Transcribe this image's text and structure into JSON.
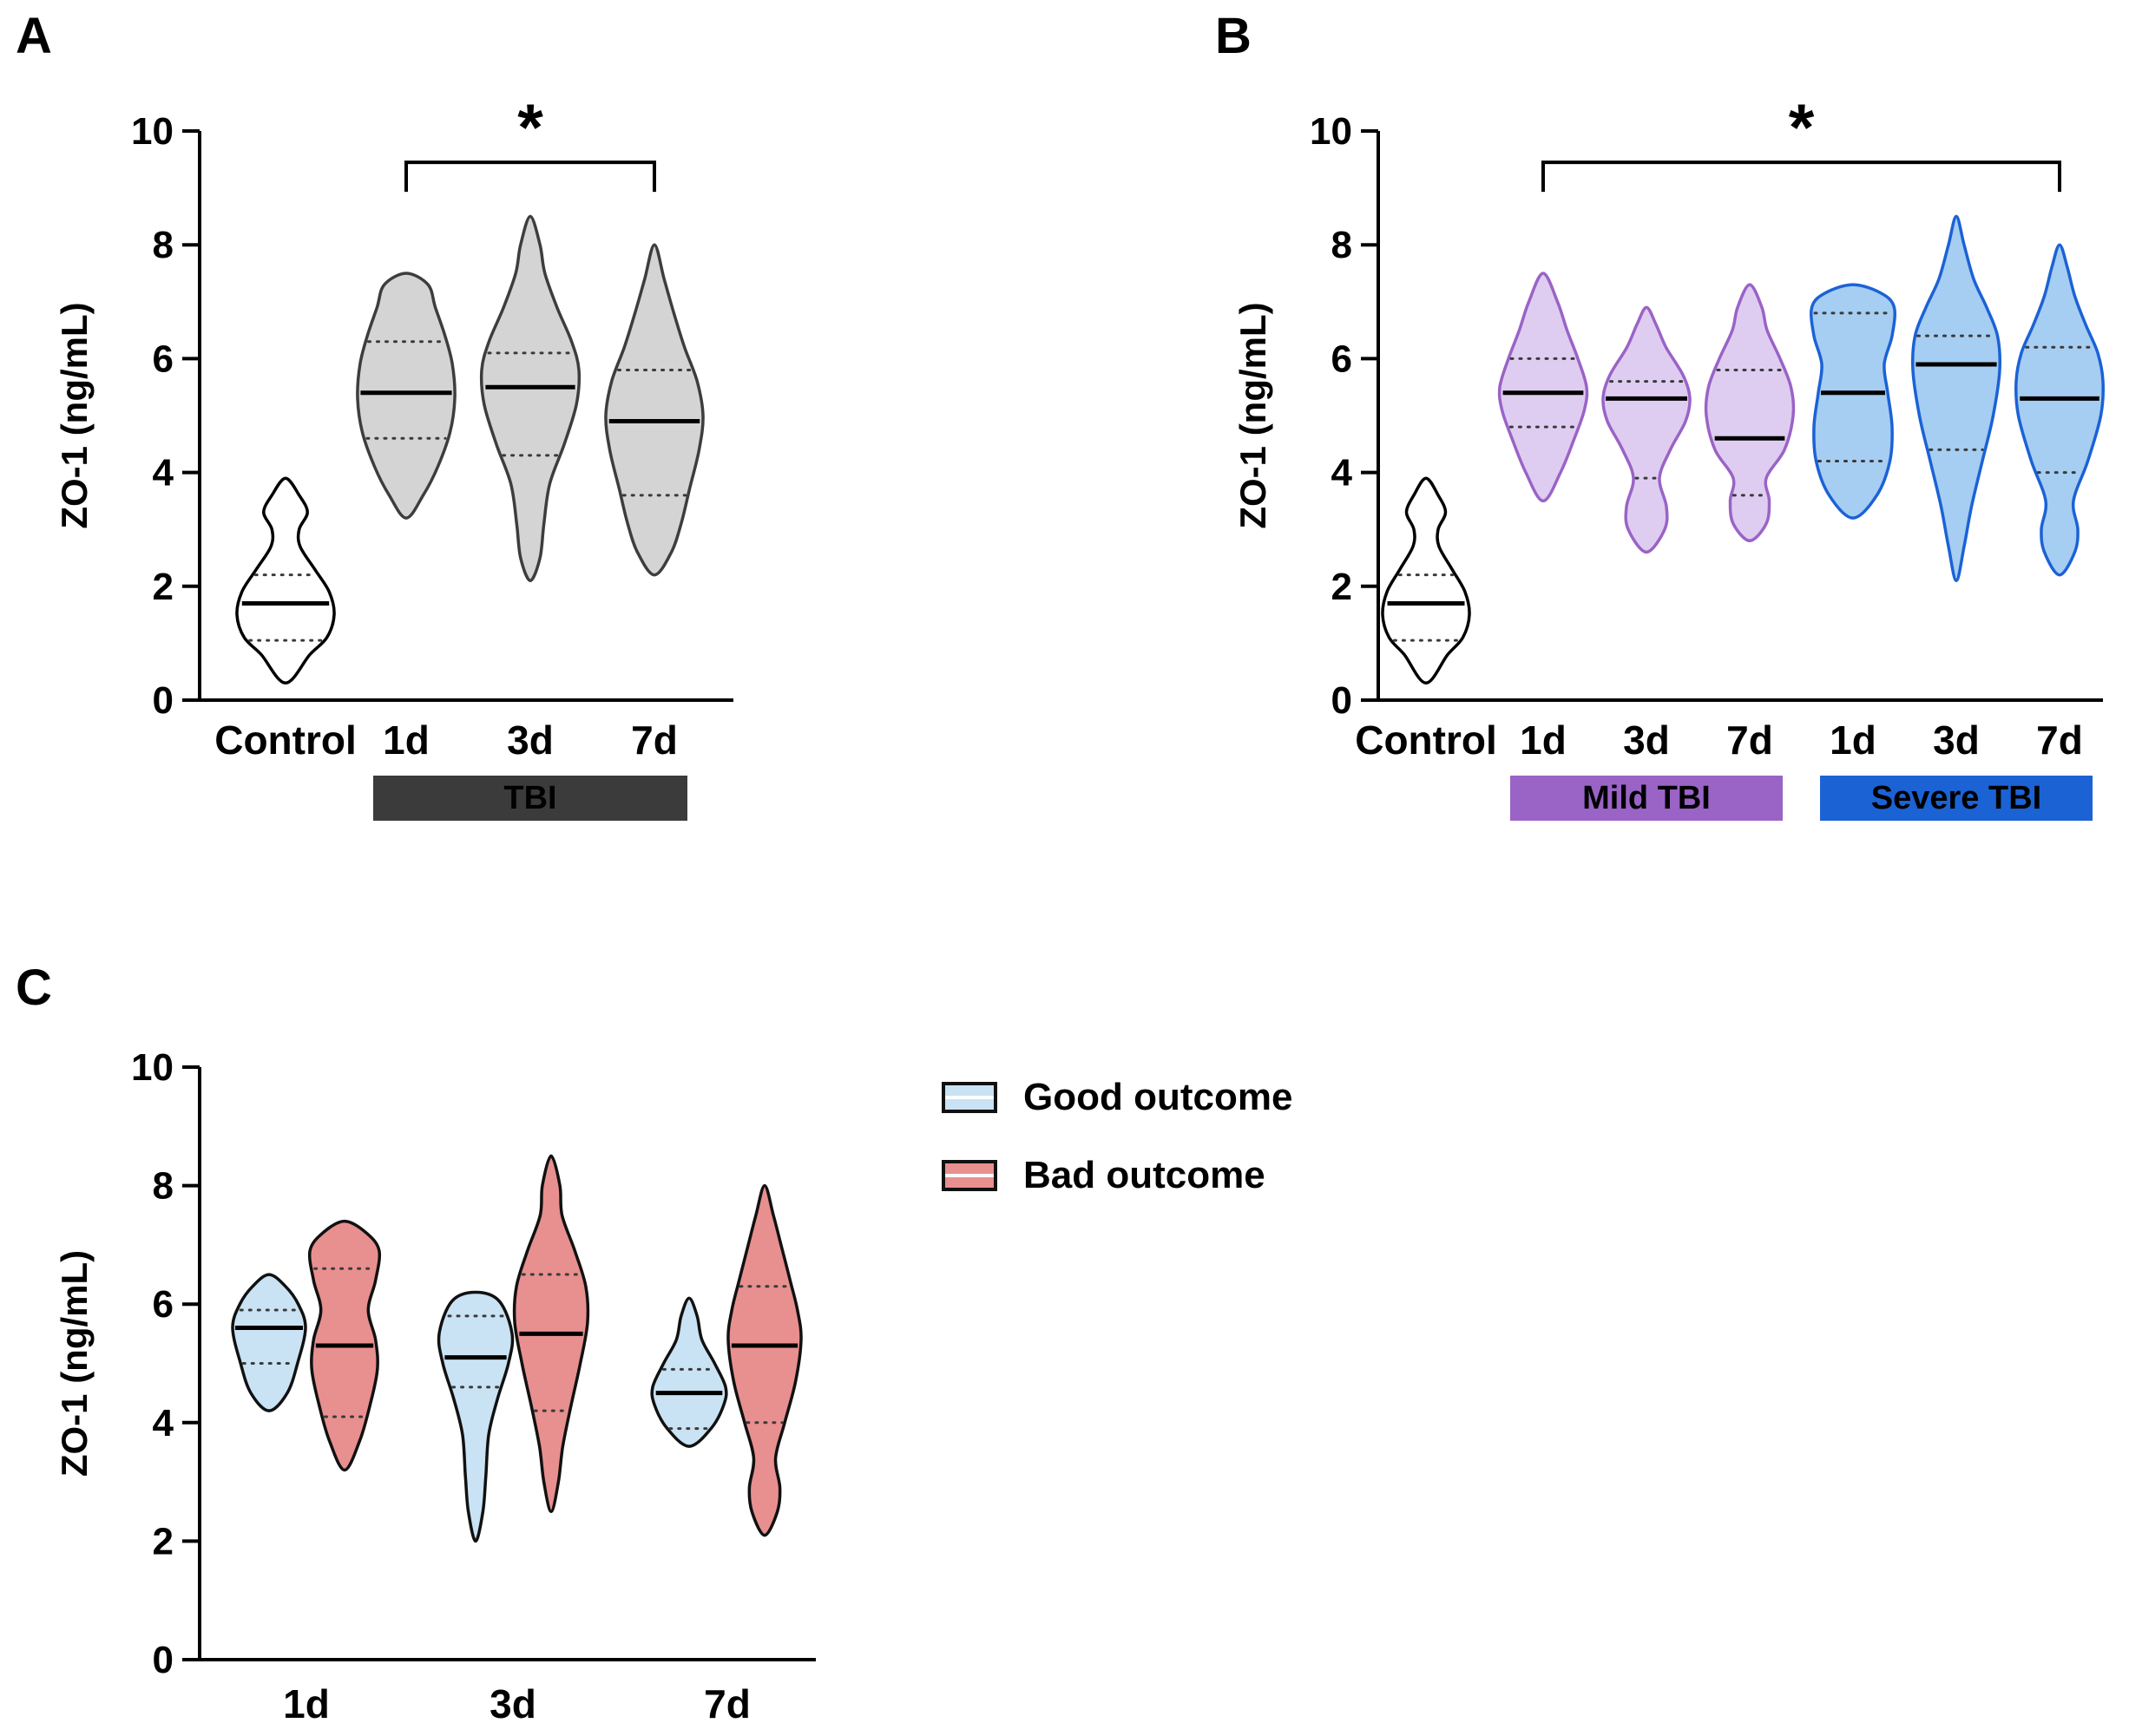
{
  "figure": {
    "panels": [
      {
        "letter": "A"
      },
      {
        "letter": "B"
      },
      {
        "letter": "C"
      }
    ]
  },
  "legend": {
    "items": [
      {
        "label": "Good outcome",
        "fill": "#c9e2f4",
        "stroke": "#111111"
      },
      {
        "label": "Bad outcome",
        "fill": "#e88f8f",
        "stroke": "#111111"
      }
    ]
  },
  "chart_data": [
    {
      "panel": "A",
      "type": "violin",
      "title": "",
      "xlabel": "",
      "ylabel": "ZO-1 (ng/mL)",
      "ylim": [
        0,
        10
      ],
      "yticks": [
        0,
        2,
        4,
        6,
        8,
        10
      ],
      "categories": [
        "Control",
        "1d",
        "3d",
        "7d"
      ],
      "significance": {
        "label": "*",
        "from": 1,
        "to": 3,
        "y": 9.45
      },
      "group_bars": [
        {
          "label": "TBI",
          "from": 1,
          "to": 3,
          "color": "#3b3b3b",
          "text_color": "#ffffff"
        }
      ],
      "violins": [
        {
          "label": "Control",
          "fill": "#ffffff",
          "stroke": "#000000",
          "min": 0.3,
          "max": 3.9,
          "median": 1.7,
          "q1": 1.05,
          "q3": 2.2,
          "shape": [
            [
              0.3,
              0
            ],
            [
              0.8,
              0.5
            ],
            [
              1.1,
              0.85
            ],
            [
              1.5,
              1.0
            ],
            [
              1.9,
              0.9
            ],
            [
              2.3,
              0.6
            ],
            [
              2.7,
              0.3
            ],
            [
              3.0,
              0.28
            ],
            [
              3.3,
              0.45
            ],
            [
              3.6,
              0.28
            ],
            [
              3.9,
              0
            ]
          ]
        },
        {
          "label": "1d",
          "fill": "#d4d4d4",
          "stroke": "#3d3d3d",
          "min": 3.2,
          "max": 7.5,
          "median": 5.4,
          "q1": 4.6,
          "q3": 6.3,
          "shape": [
            [
              3.2,
              0
            ],
            [
              3.6,
              0.35
            ],
            [
              4.1,
              0.65
            ],
            [
              4.7,
              0.9
            ],
            [
              5.3,
              1.0
            ],
            [
              5.9,
              0.95
            ],
            [
              6.4,
              0.8
            ],
            [
              6.9,
              0.6
            ],
            [
              7.3,
              0.45
            ],
            [
              7.5,
              0
            ]
          ]
        },
        {
          "label": "3d",
          "fill": "#d4d4d4",
          "stroke": "#3d3d3d",
          "min": 2.1,
          "max": 8.5,
          "median": 5.5,
          "q1": 4.3,
          "q3": 6.1,
          "shape": [
            [
              2.1,
              0
            ],
            [
              2.5,
              0.2
            ],
            [
              3.1,
              0.28
            ],
            [
              3.8,
              0.4
            ],
            [
              4.5,
              0.7
            ],
            [
              5.2,
              0.95
            ],
            [
              5.8,
              1.0
            ],
            [
              6.3,
              0.85
            ],
            [
              6.9,
              0.55
            ],
            [
              7.5,
              0.3
            ],
            [
              8.0,
              0.2
            ],
            [
              8.5,
              0
            ]
          ]
        },
        {
          "label": "7d",
          "fill": "#d4d4d4",
          "stroke": "#3d3d3d",
          "min": 2.2,
          "max": 8.0,
          "median": 4.9,
          "q1": 3.6,
          "q3": 5.8,
          "shape": [
            [
              2.2,
              0
            ],
            [
              2.6,
              0.35
            ],
            [
              3.1,
              0.55
            ],
            [
              3.7,
              0.72
            ],
            [
              4.4,
              0.92
            ],
            [
              5.0,
              1.0
            ],
            [
              5.6,
              0.88
            ],
            [
              6.2,
              0.62
            ],
            [
              6.8,
              0.4
            ],
            [
              7.4,
              0.2
            ],
            [
              8.0,
              0
            ]
          ]
        }
      ]
    },
    {
      "panel": "B",
      "type": "violin",
      "title": "",
      "xlabel": "",
      "ylabel": "ZO-1 (ng/mL)",
      "ylim": [
        0,
        10
      ],
      "yticks": [
        0,
        2,
        4,
        6,
        8,
        10
      ],
      "categories": [
        "Control",
        "1d",
        "3d",
        "7d",
        "1d",
        "3d",
        "7d"
      ],
      "significance": {
        "label": "*",
        "from": 1,
        "to": 6,
        "y": 9.45
      },
      "group_bars": [
        {
          "label": "Mild TBI",
          "from": 1,
          "to": 3,
          "color": "#9a63c6",
          "text_color": "#ffffff"
        },
        {
          "label": "Severe TBI",
          "from": 4,
          "to": 6,
          "color": "#1b62d5",
          "text_color": "#ffffff"
        }
      ],
      "violins": [
        {
          "label": "Control",
          "group": "Control",
          "fill": "#ffffff",
          "stroke": "#000000",
          "min": 0.3,
          "max": 3.9,
          "median": 1.7,
          "q1": 1.05,
          "q3": 2.2,
          "shape": [
            [
              0.3,
              0
            ],
            [
              0.8,
              0.5
            ],
            [
              1.1,
              0.85
            ],
            [
              1.5,
              1.0
            ],
            [
              1.9,
              0.9
            ],
            [
              2.3,
              0.6
            ],
            [
              2.7,
              0.3
            ],
            [
              3.0,
              0.28
            ],
            [
              3.3,
              0.45
            ],
            [
              3.6,
              0.28
            ],
            [
              3.9,
              0
            ]
          ]
        },
        {
          "label": "1d",
          "group": "Mild TBI",
          "fill": "#dfcdf1",
          "stroke": "#9a63c6",
          "min": 3.5,
          "max": 7.5,
          "median": 5.4,
          "q1": 4.8,
          "q3": 6.0,
          "shape": [
            [
              3.5,
              0
            ],
            [
              4.0,
              0.4
            ],
            [
              4.6,
              0.72
            ],
            [
              5.1,
              0.95
            ],
            [
              5.5,
              1.0
            ],
            [
              6.0,
              0.8
            ],
            [
              6.5,
              0.55
            ],
            [
              7.0,
              0.33
            ],
            [
              7.5,
              0
            ]
          ]
        },
        {
          "label": "3d",
          "group": "Mild TBI",
          "fill": "#dfcdf1",
          "stroke": "#9a63c6",
          "min": 2.6,
          "max": 6.9,
          "median": 5.3,
          "q1": 3.9,
          "q3": 5.6,
          "shape": [
            [
              2.6,
              0
            ],
            [
              3.0,
              0.42
            ],
            [
              3.4,
              0.46
            ],
            [
              3.9,
              0.3
            ],
            [
              4.4,
              0.55
            ],
            [
              4.9,
              0.9
            ],
            [
              5.3,
              1.0
            ],
            [
              5.7,
              0.85
            ],
            [
              6.2,
              0.45
            ],
            [
              6.6,
              0.22
            ],
            [
              6.9,
              0
            ]
          ]
        },
        {
          "label": "7d",
          "group": "Mild TBI",
          "fill": "#dfcdf1",
          "stroke": "#9a63c6",
          "min": 2.8,
          "max": 7.3,
          "median": 4.6,
          "q1": 3.6,
          "q3": 5.8,
          "shape": [
            [
              2.8,
              0
            ],
            [
              3.1,
              0.38
            ],
            [
              3.5,
              0.45
            ],
            [
              3.9,
              0.38
            ],
            [
              4.4,
              0.8
            ],
            [
              5.0,
              1.0
            ],
            [
              5.5,
              0.95
            ],
            [
              6.0,
              0.7
            ],
            [
              6.5,
              0.4
            ],
            [
              6.9,
              0.28
            ],
            [
              7.3,
              0
            ]
          ]
        },
        {
          "label": "1d",
          "group": "Severe TBI",
          "fill": "#a6cdf2",
          "stroke": "#1b62d5",
          "min": 3.2,
          "max": 7.3,
          "median": 5.4,
          "q1": 4.2,
          "q3": 6.8,
          "shape": [
            [
              3.2,
              0
            ],
            [
              3.6,
              0.55
            ],
            [
              4.2,
              0.85
            ],
            [
              4.8,
              0.9
            ],
            [
              5.4,
              0.8
            ],
            [
              5.9,
              0.72
            ],
            [
              6.4,
              0.9
            ],
            [
              6.9,
              0.95
            ],
            [
              7.15,
              0.65
            ],
            [
              7.3,
              0
            ]
          ]
        },
        {
          "label": "3d",
          "group": "Severe TBI",
          "fill": "#a6cdf2",
          "stroke": "#1b62d5",
          "min": 2.1,
          "max": 8.5,
          "median": 5.9,
          "q1": 4.4,
          "q3": 6.4,
          "shape": [
            [
              2.1,
              0
            ],
            [
              2.7,
              0.18
            ],
            [
              3.4,
              0.35
            ],
            [
              4.2,
              0.6
            ],
            [
              5.0,
              0.85
            ],
            [
              5.8,
              1.0
            ],
            [
              6.4,
              0.95
            ],
            [
              6.9,
              0.7
            ],
            [
              7.4,
              0.4
            ],
            [
              8.0,
              0.18
            ],
            [
              8.5,
              0
            ]
          ]
        },
        {
          "label": "7d",
          "group": "Severe TBI",
          "fill": "#a6cdf2",
          "stroke": "#1b62d5",
          "min": 2.2,
          "max": 8.0,
          "median": 5.3,
          "q1": 4.0,
          "q3": 6.2,
          "shape": [
            [
              2.2,
              0
            ],
            [
              2.6,
              0.35
            ],
            [
              3.0,
              0.42
            ],
            [
              3.5,
              0.32
            ],
            [
              4.2,
              0.65
            ],
            [
              5.0,
              0.95
            ],
            [
              5.6,
              1.0
            ],
            [
              6.1,
              0.88
            ],
            [
              6.6,
              0.6
            ],
            [
              7.1,
              0.35
            ],
            [
              7.6,
              0.18
            ],
            [
              8.0,
              0
            ]
          ]
        }
      ]
    },
    {
      "panel": "C",
      "type": "violin",
      "title": "",
      "xlabel": "",
      "ylabel": "ZO-1 (ng/mL)",
      "ylim": [
        0,
        10
      ],
      "yticks": [
        0,
        2,
        4,
        6,
        8,
        10
      ],
      "categories": [
        "1d",
        "3d",
        "7d"
      ],
      "series": [
        "Good outcome",
        "Bad outcome"
      ],
      "legend_position": "right",
      "violins": [
        {
          "label": "1d",
          "series": "Good outcome",
          "fill": "#c9e2f4",
          "stroke": "#111111",
          "min": 4.2,
          "max": 6.5,
          "median": 5.6,
          "q1": 5.0,
          "q3": 5.9,
          "shape": [
            [
              4.2,
              0
            ],
            [
              4.5,
              0.5
            ],
            [
              5.0,
              0.78
            ],
            [
              5.6,
              1.0
            ],
            [
              6.0,
              0.8
            ],
            [
              6.3,
              0.45
            ],
            [
              6.5,
              0
            ]
          ]
        },
        {
          "label": "1d",
          "series": "Bad outcome",
          "fill": "#e88f8f",
          "stroke": "#111111",
          "min": 3.2,
          "max": 7.4,
          "median": 5.3,
          "q1": 4.1,
          "q3": 6.6,
          "shape": [
            [
              3.2,
              0
            ],
            [
              3.7,
              0.42
            ],
            [
              4.3,
              0.7
            ],
            [
              4.9,
              0.9
            ],
            [
              5.4,
              0.85
            ],
            [
              5.9,
              0.65
            ],
            [
              6.4,
              0.85
            ],
            [
              6.9,
              0.95
            ],
            [
              7.2,
              0.6
            ],
            [
              7.4,
              0
            ]
          ]
        },
        {
          "label": "3d",
          "series": "Good outcome",
          "fill": "#c9e2f4",
          "stroke": "#111111",
          "min": 2.0,
          "max": 6.2,
          "median": 5.1,
          "q1": 4.6,
          "q3": 5.8,
          "shape": [
            [
              2.0,
              0
            ],
            [
              2.5,
              0.2
            ],
            [
              3.1,
              0.28
            ],
            [
              3.8,
              0.36
            ],
            [
              4.4,
              0.6
            ],
            [
              5.0,
              0.9
            ],
            [
              5.5,
              1.0
            ],
            [
              6.05,
              0.65
            ],
            [
              6.2,
              0
            ]
          ]
        },
        {
          "label": "3d",
          "series": "Bad outcome",
          "fill": "#e88f8f",
          "stroke": "#111111",
          "min": 2.5,
          "max": 8.5,
          "median": 5.5,
          "q1": 4.2,
          "q3": 6.5,
          "shape": [
            [
              2.5,
              0
            ],
            [
              3.0,
              0.2
            ],
            [
              3.6,
              0.32
            ],
            [
              4.3,
              0.55
            ],
            [
              5.0,
              0.8
            ],
            [
              5.7,
              1.0
            ],
            [
              6.3,
              0.95
            ],
            [
              6.9,
              0.65
            ],
            [
              7.5,
              0.3
            ],
            [
              8.0,
              0.24
            ],
            [
              8.5,
              0
            ]
          ]
        },
        {
          "label": "7d",
          "series": "Good outcome",
          "fill": "#c9e2f4",
          "stroke": "#111111",
          "min": 3.6,
          "max": 6.1,
          "median": 4.5,
          "q1": 3.9,
          "q3": 4.9,
          "shape": [
            [
              3.6,
              0
            ],
            [
              3.9,
              0.6
            ],
            [
              4.3,
              0.95
            ],
            [
              4.6,
              1.0
            ],
            [
              5.0,
              0.7
            ],
            [
              5.4,
              0.35
            ],
            [
              5.8,
              0.22
            ],
            [
              6.1,
              0
            ]
          ]
        },
        {
          "label": "7d",
          "series": "Bad outcome",
          "fill": "#e88f8f",
          "stroke": "#111111",
          "min": 2.1,
          "max": 8.0,
          "median": 5.3,
          "q1": 4.0,
          "q3": 6.3,
          "shape": [
            [
              2.1,
              0
            ],
            [
              2.5,
              0.35
            ],
            [
              2.9,
              0.42
            ],
            [
              3.4,
              0.3
            ],
            [
              4.0,
              0.55
            ],
            [
              4.7,
              0.85
            ],
            [
              5.4,
              1.0
            ],
            [
              5.9,
              0.9
            ],
            [
              6.4,
              0.7
            ],
            [
              7.0,
              0.45
            ],
            [
              7.5,
              0.24
            ],
            [
              8.0,
              0
            ]
          ]
        }
      ]
    }
  ]
}
